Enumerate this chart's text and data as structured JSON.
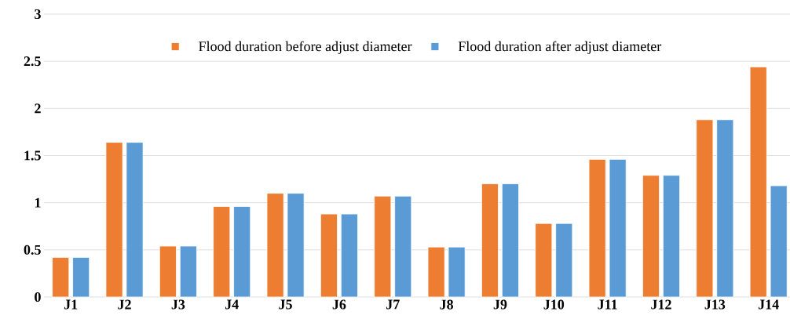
{
  "chart_data": {
    "type": "bar",
    "categories": [
      "J1",
      "J2",
      "J3",
      "J4",
      "J5",
      "J6",
      "J7",
      "J8",
      "J9",
      "J10",
      "J11",
      "J12",
      "J13",
      "J14"
    ],
    "series": [
      {
        "name": "Flood duration before adjust diameter",
        "color": "#ed7d31",
        "values": [
          0.42,
          1.64,
          0.54,
          0.96,
          1.1,
          0.88,
          1.07,
          0.53,
          1.2,
          0.78,
          1.46,
          1.29,
          1.88,
          2.44
        ]
      },
      {
        "name": "Flood duration after adjust diameter",
        "color": "#5b9bd5",
        "values": [
          0.42,
          1.64,
          0.54,
          0.96,
          1.1,
          0.88,
          1.07,
          0.53,
          1.2,
          0.78,
          1.46,
          1.29,
          1.88,
          1.18
        ]
      }
    ],
    "ylim": [
      0,
      3
    ],
    "yticks": [
      0,
      0.5,
      1,
      1.5,
      2,
      2.5,
      3
    ],
    "grid": "y",
    "legend": "top"
  }
}
